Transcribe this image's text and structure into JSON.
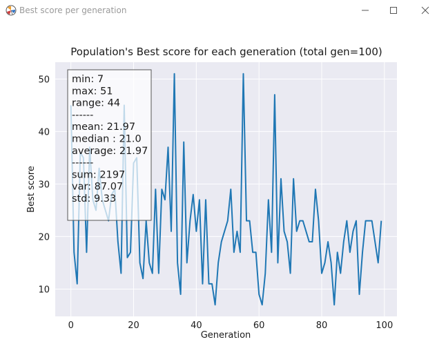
{
  "window": {
    "title": "Best score per generation",
    "icon": "matplotlib-logo-icon",
    "controls": [
      "minimize-icon",
      "maximize-icon",
      "close-icon"
    ]
  },
  "chart_data": {
    "type": "line",
    "title": "Population's Best score for each generation (total gen=100)",
    "xlabel": "Generation",
    "ylabel": "Best score",
    "xlim": [
      -5,
      104
    ],
    "ylim": [
      4.8,
      53.2
    ],
    "xticks": [
      0,
      20,
      40,
      60,
      80,
      100
    ],
    "yticks": [
      10,
      20,
      30,
      40,
      50
    ],
    "grid": true,
    "background": "#eaeaf2",
    "line_color": "#1f77b4",
    "series": [
      {
        "x": [
          0,
          1,
          2,
          3,
          4,
          5,
          6,
          7,
          8,
          9,
          10,
          11,
          12,
          13,
          14,
          15,
          16,
          17,
          18,
          19,
          20,
          21,
          22,
          23,
          24,
          25,
          26,
          27,
          28,
          29,
          30,
          31,
          32,
          33,
          34,
          35,
          36,
          37,
          38,
          39,
          40,
          41,
          42,
          43,
          44,
          45,
          46,
          47,
          48,
          49,
          50,
          51,
          52,
          53,
          54,
          55,
          56,
          57,
          58,
          59,
          60,
          61,
          62,
          63,
          64,
          65,
          66,
          67,
          68,
          69,
          70,
          71,
          72,
          73,
          74,
          75,
          76,
          77,
          78,
          79,
          80,
          81,
          82,
          83,
          84,
          85,
          86,
          87,
          88,
          89,
          90,
          91,
          92,
          93,
          94,
          95,
          96,
          97,
          98,
          99
        ],
        "values": [
          45,
          17,
          11,
          36,
          35,
          17,
          37,
          27,
          25,
          33,
          27,
          25,
          23,
          28,
          29,
          19,
          13,
          45,
          16,
          17,
          34,
          35,
          15,
          12,
          23,
          15,
          13,
          29,
          13,
          29,
          27,
          37,
          21,
          51,
          15,
          9,
          38,
          15,
          23,
          28,
          21,
          27,
          11,
          27,
          11,
          11,
          7,
          15,
          19,
          21,
          23,
          29,
          17,
          21,
          17,
          51,
          23,
          23,
          17,
          17,
          9,
          7,
          13,
          27,
          17,
          47,
          15,
          31,
          21,
          19,
          13,
          31,
          21,
          23,
          23,
          21,
          19,
          19,
          29,
          23,
          13,
          15,
          19,
          15,
          7,
          17,
          13,
          19,
          23,
          17,
          21,
          23,
          9,
          17,
          23,
          23,
          23,
          19,
          15,
          23
        ]
      }
    ],
    "legend": {
      "placement": "top-left",
      "lines": [
        "min: 7",
        "max: 51",
        "range: 44",
        "------",
        "mean: 21.97",
        "median : 21.0",
        "average: 21.97",
        "------",
        "sum: 2197",
        "var: 87.07",
        "std: 9.33"
      ]
    }
  }
}
